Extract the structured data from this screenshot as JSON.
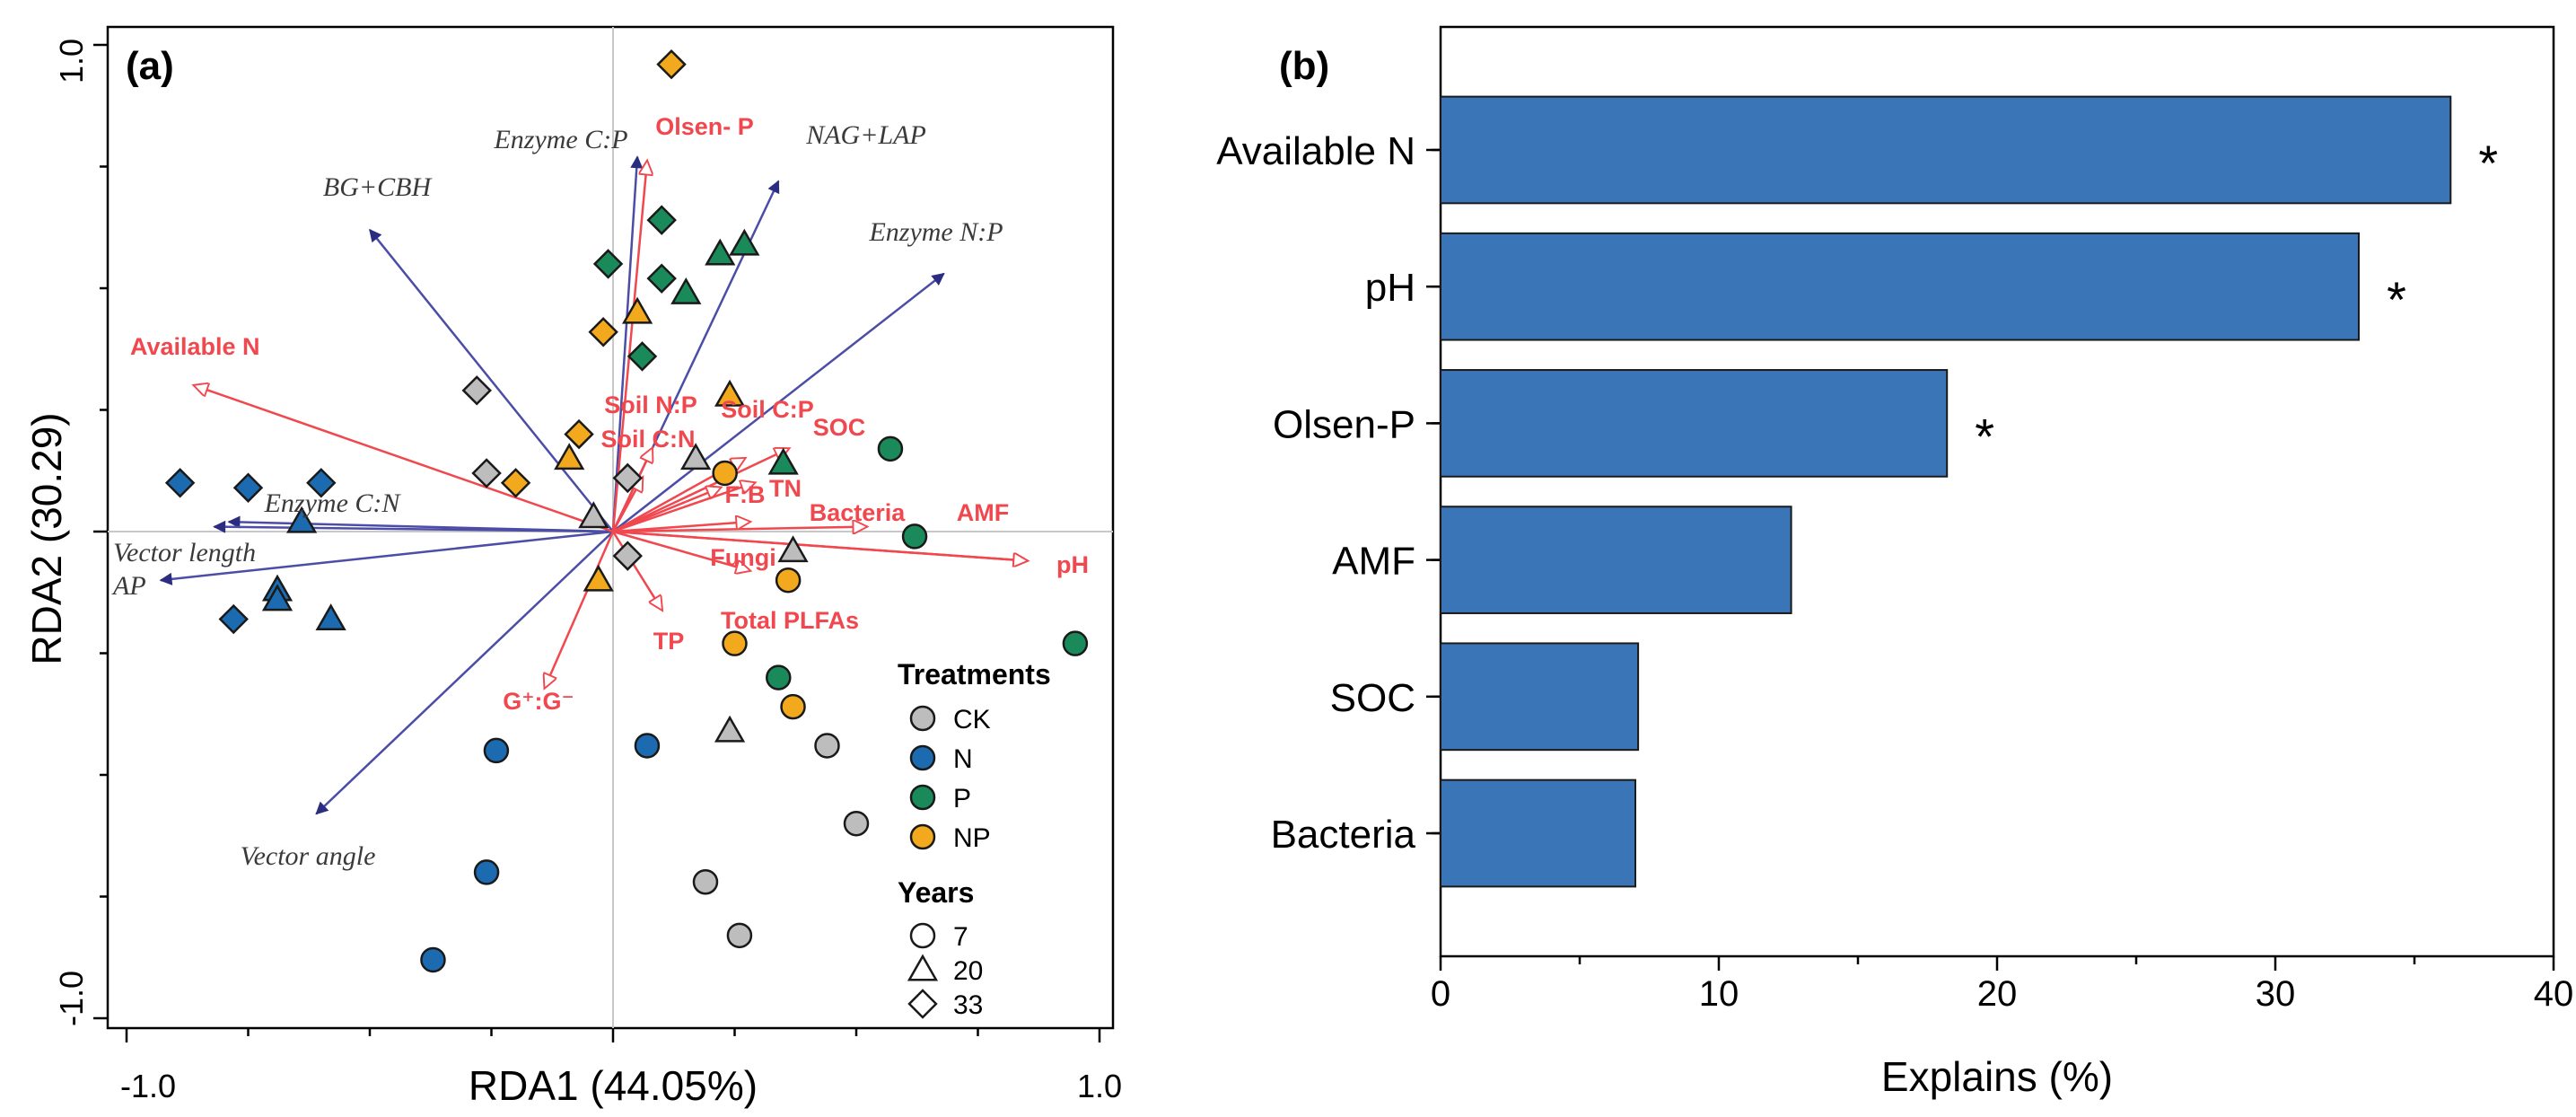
{
  "chart_data": [
    {
      "type": "scatter",
      "panel_label": "(a)",
      "xlabel": "RDA1 (44.05%)",
      "ylabel": "RDA2 (30.29)",
      "xlim": [
        -1.0,
        1.0
      ],
      "ylim": [
        -1.0,
        1.0
      ],
      "x_tick_labels": [
        {
          "value": -1.0,
          "label": "-1.0"
        },
        {
          "value": 1.0,
          "label": "1.0"
        }
      ],
      "y_tick_labels": [
        {
          "value": 1.0,
          "label": "1.0"
        },
        {
          "value": -1.0,
          "label": "-1.0"
        }
      ],
      "treatments": {
        "title": "Treatments",
        "items": [
          {
            "key": "CK",
            "label": "CK",
            "color": "#bdbdbd"
          },
          {
            "key": "N",
            "label": "N",
            "color": "#1c6bb0"
          },
          {
            "key": "P",
            "label": "P",
            "color": "#1a8a5a"
          },
          {
            "key": "NP",
            "label": "NP",
            "color": "#f2a91e"
          }
        ]
      },
      "years": {
        "title": "Years",
        "items": [
          {
            "key": "7",
            "label": "7",
            "shape": "circle"
          },
          {
            "key": "20",
            "label": "20",
            "shape": "triangle"
          },
          {
            "key": "33",
            "label": "33",
            "shape": "diamond"
          }
        ]
      },
      "response_arrows": [
        {
          "label": "BG+CBH",
          "x": -0.5,
          "y": 0.62
        },
        {
          "label": "Enzyme C:P",
          "x": 0.05,
          "y": 0.77
        },
        {
          "label": "NAG+LAP",
          "x": 0.34,
          "y": 0.72
        },
        {
          "label": "Enzyme N:P",
          "x": 0.68,
          "y": 0.53
        },
        {
          "label": "Enzyme C:N",
          "x": -0.79,
          "y": 0.02
        },
        {
          "label": "Vector length",
          "x": -0.82,
          "y": 0.01
        },
        {
          "label": "AP",
          "x": -0.93,
          "y": -0.1
        },
        {
          "label": "Vector angle",
          "x": -0.61,
          "y": -0.58
        }
      ],
      "explanatory_arrows": [
        {
          "label": "Available N",
          "x": -0.86,
          "y": 0.3
        },
        {
          "label": "Olsen- P",
          "x": 0.07,
          "y": 0.76
        },
        {
          "label": "Soil N:P",
          "x": 0.08,
          "y": 0.17
        },
        {
          "label": "Soil C:N",
          "x": 0.06,
          "y": 0.11
        },
        {
          "label": "Soil C:P",
          "x": 0.27,
          "y": 0.15
        },
        {
          "label": "SOC",
          "x": 0.36,
          "y": 0.17
        },
        {
          "label": "F:B",
          "x": 0.22,
          "y": 0.09
        },
        {
          "label": "TN",
          "x": 0.29,
          "y": 0.1
        },
        {
          "label": "Bacteria",
          "x": 0.52,
          "y": 0.01
        },
        {
          "label": "AMF",
          "x": 0.85,
          "y": -0.06
        },
        {
          "label": "pH",
          "x": 0.85,
          "y": -0.06
        },
        {
          "label": "Fungi",
          "x": 0.28,
          "y": 0.02
        },
        {
          "label": "Total  PLFAs",
          "x": 0.28,
          "y": -0.08
        },
        {
          "label": "TP",
          "x": 0.1,
          "y": -0.16
        },
        {
          "label": "G⁺:G⁻",
          "x": -0.14,
          "y": -0.32
        }
      ],
      "points": [
        {
          "treatment": "CK",
          "year": "7",
          "x": 0.44,
          "y": -0.44
        },
        {
          "treatment": "CK",
          "year": "7",
          "x": 0.5,
          "y": -0.6
        },
        {
          "treatment": "CK",
          "year": "7",
          "x": 0.19,
          "y": -0.72
        },
        {
          "treatment": "CK",
          "year": "7",
          "x": 0.26,
          "y": -0.83
        },
        {
          "treatment": "CK",
          "year": "20",
          "x": 0.37,
          "y": -0.04
        },
        {
          "treatment": "CK",
          "year": "20",
          "x": 0.24,
          "y": -0.41
        },
        {
          "treatment": "CK",
          "year": "20",
          "x": 0.17,
          "y": 0.15
        },
        {
          "treatment": "CK",
          "year": "20",
          "x": -0.04,
          "y": 0.03
        },
        {
          "treatment": "CK",
          "year": "33",
          "x": -0.28,
          "y": 0.29
        },
        {
          "treatment": "CK",
          "year": "33",
          "x": -0.26,
          "y": 0.12
        },
        {
          "treatment": "CK",
          "year": "33",
          "x": 0.03,
          "y": 0.11
        },
        {
          "treatment": "CK",
          "year": "33",
          "x": 0.03,
          "y": -0.05
        },
        {
          "treatment": "N",
          "year": "7",
          "x": -0.24,
          "y": -0.45
        },
        {
          "treatment": "N",
          "year": "7",
          "x": 0.07,
          "y": -0.44
        },
        {
          "treatment": "N",
          "year": "7",
          "x": -0.26,
          "y": -0.7
        },
        {
          "treatment": "N",
          "year": "7",
          "x": -0.37,
          "y": -0.88
        },
        {
          "treatment": "N",
          "year": "20",
          "x": -0.64,
          "y": 0.02
        },
        {
          "treatment": "N",
          "year": "20",
          "x": -0.69,
          "y": -0.12
        },
        {
          "treatment": "N",
          "year": "20",
          "x": -0.69,
          "y": -0.14
        },
        {
          "treatment": "N",
          "year": "20",
          "x": -0.58,
          "y": -0.18
        },
        {
          "treatment": "N",
          "year": "33",
          "x": -0.89,
          "y": 0.1
        },
        {
          "treatment": "N",
          "year": "33",
          "x": -0.75,
          "y": 0.09
        },
        {
          "treatment": "N",
          "year": "33",
          "x": -0.6,
          "y": 0.1
        },
        {
          "treatment": "N",
          "year": "33",
          "x": -0.78,
          "y": -0.18
        },
        {
          "treatment": "P",
          "year": "7",
          "x": 0.57,
          "y": 0.17
        },
        {
          "treatment": "P",
          "year": "7",
          "x": 0.62,
          "y": -0.01
        },
        {
          "treatment": "P",
          "year": "7",
          "x": 0.34,
          "y": -0.3
        },
        {
          "treatment": "P",
          "year": "7",
          "x": 0.95,
          "y": -0.23
        },
        {
          "treatment": "P",
          "year": "20",
          "x": 0.22,
          "y": 0.57
        },
        {
          "treatment": "P",
          "year": "20",
          "x": 0.27,
          "y": 0.59
        },
        {
          "treatment": "P",
          "year": "20",
          "x": 0.15,
          "y": 0.49
        },
        {
          "treatment": "P",
          "year": "20",
          "x": 0.35,
          "y": 0.14
        },
        {
          "treatment": "P",
          "year": "33",
          "x": 0.1,
          "y": 0.64
        },
        {
          "treatment": "P",
          "year": "33",
          "x": -0.01,
          "y": 0.55
        },
        {
          "treatment": "P",
          "year": "33",
          "x": 0.1,
          "y": 0.52
        },
        {
          "treatment": "P",
          "year": "33",
          "x": 0.06,
          "y": 0.36
        },
        {
          "treatment": "NP",
          "year": "7",
          "x": 0.23,
          "y": 0.12
        },
        {
          "treatment": "NP",
          "year": "7",
          "x": 0.36,
          "y": -0.1
        },
        {
          "treatment": "NP",
          "year": "7",
          "x": 0.25,
          "y": -0.23
        },
        {
          "treatment": "NP",
          "year": "7",
          "x": 0.37,
          "y": -0.36
        },
        {
          "treatment": "NP",
          "year": "20",
          "x": 0.05,
          "y": 0.45
        },
        {
          "treatment": "NP",
          "year": "20",
          "x": 0.24,
          "y": 0.28
        },
        {
          "treatment": "NP",
          "year": "20",
          "x": -0.09,
          "y": 0.15
        },
        {
          "treatment": "NP",
          "year": "20",
          "x": -0.03,
          "y": -0.1
        },
        {
          "treatment": "NP",
          "year": "33",
          "x": 0.12,
          "y": 0.96
        },
        {
          "treatment": "NP",
          "year": "33",
          "x": -0.02,
          "y": 0.41
        },
        {
          "treatment": "NP",
          "year": "33",
          "x": -0.07,
          "y": 0.2
        },
        {
          "treatment": "NP",
          "year": "33",
          "x": -0.2,
          "y": 0.1
        }
      ]
    },
    {
      "type": "bar",
      "orientation": "horizontal",
      "panel_label": "(b)",
      "categories": [
        "Available N",
        "pH",
        "Olsen-P",
        "AMF",
        "SOC",
        "Bacteria"
      ],
      "values": [
        36.3,
        33.0,
        18.2,
        12.6,
        7.1,
        7.0
      ],
      "significance": [
        "*",
        "*",
        "*",
        "",
        "",
        ""
      ],
      "xlabel": "Explains (%)",
      "ylabel": "",
      "xlim": [
        0,
        40
      ],
      "x_ticks": [
        0,
        10,
        20,
        30,
        40
      ],
      "bar_color": "#3a75b8"
    }
  ]
}
